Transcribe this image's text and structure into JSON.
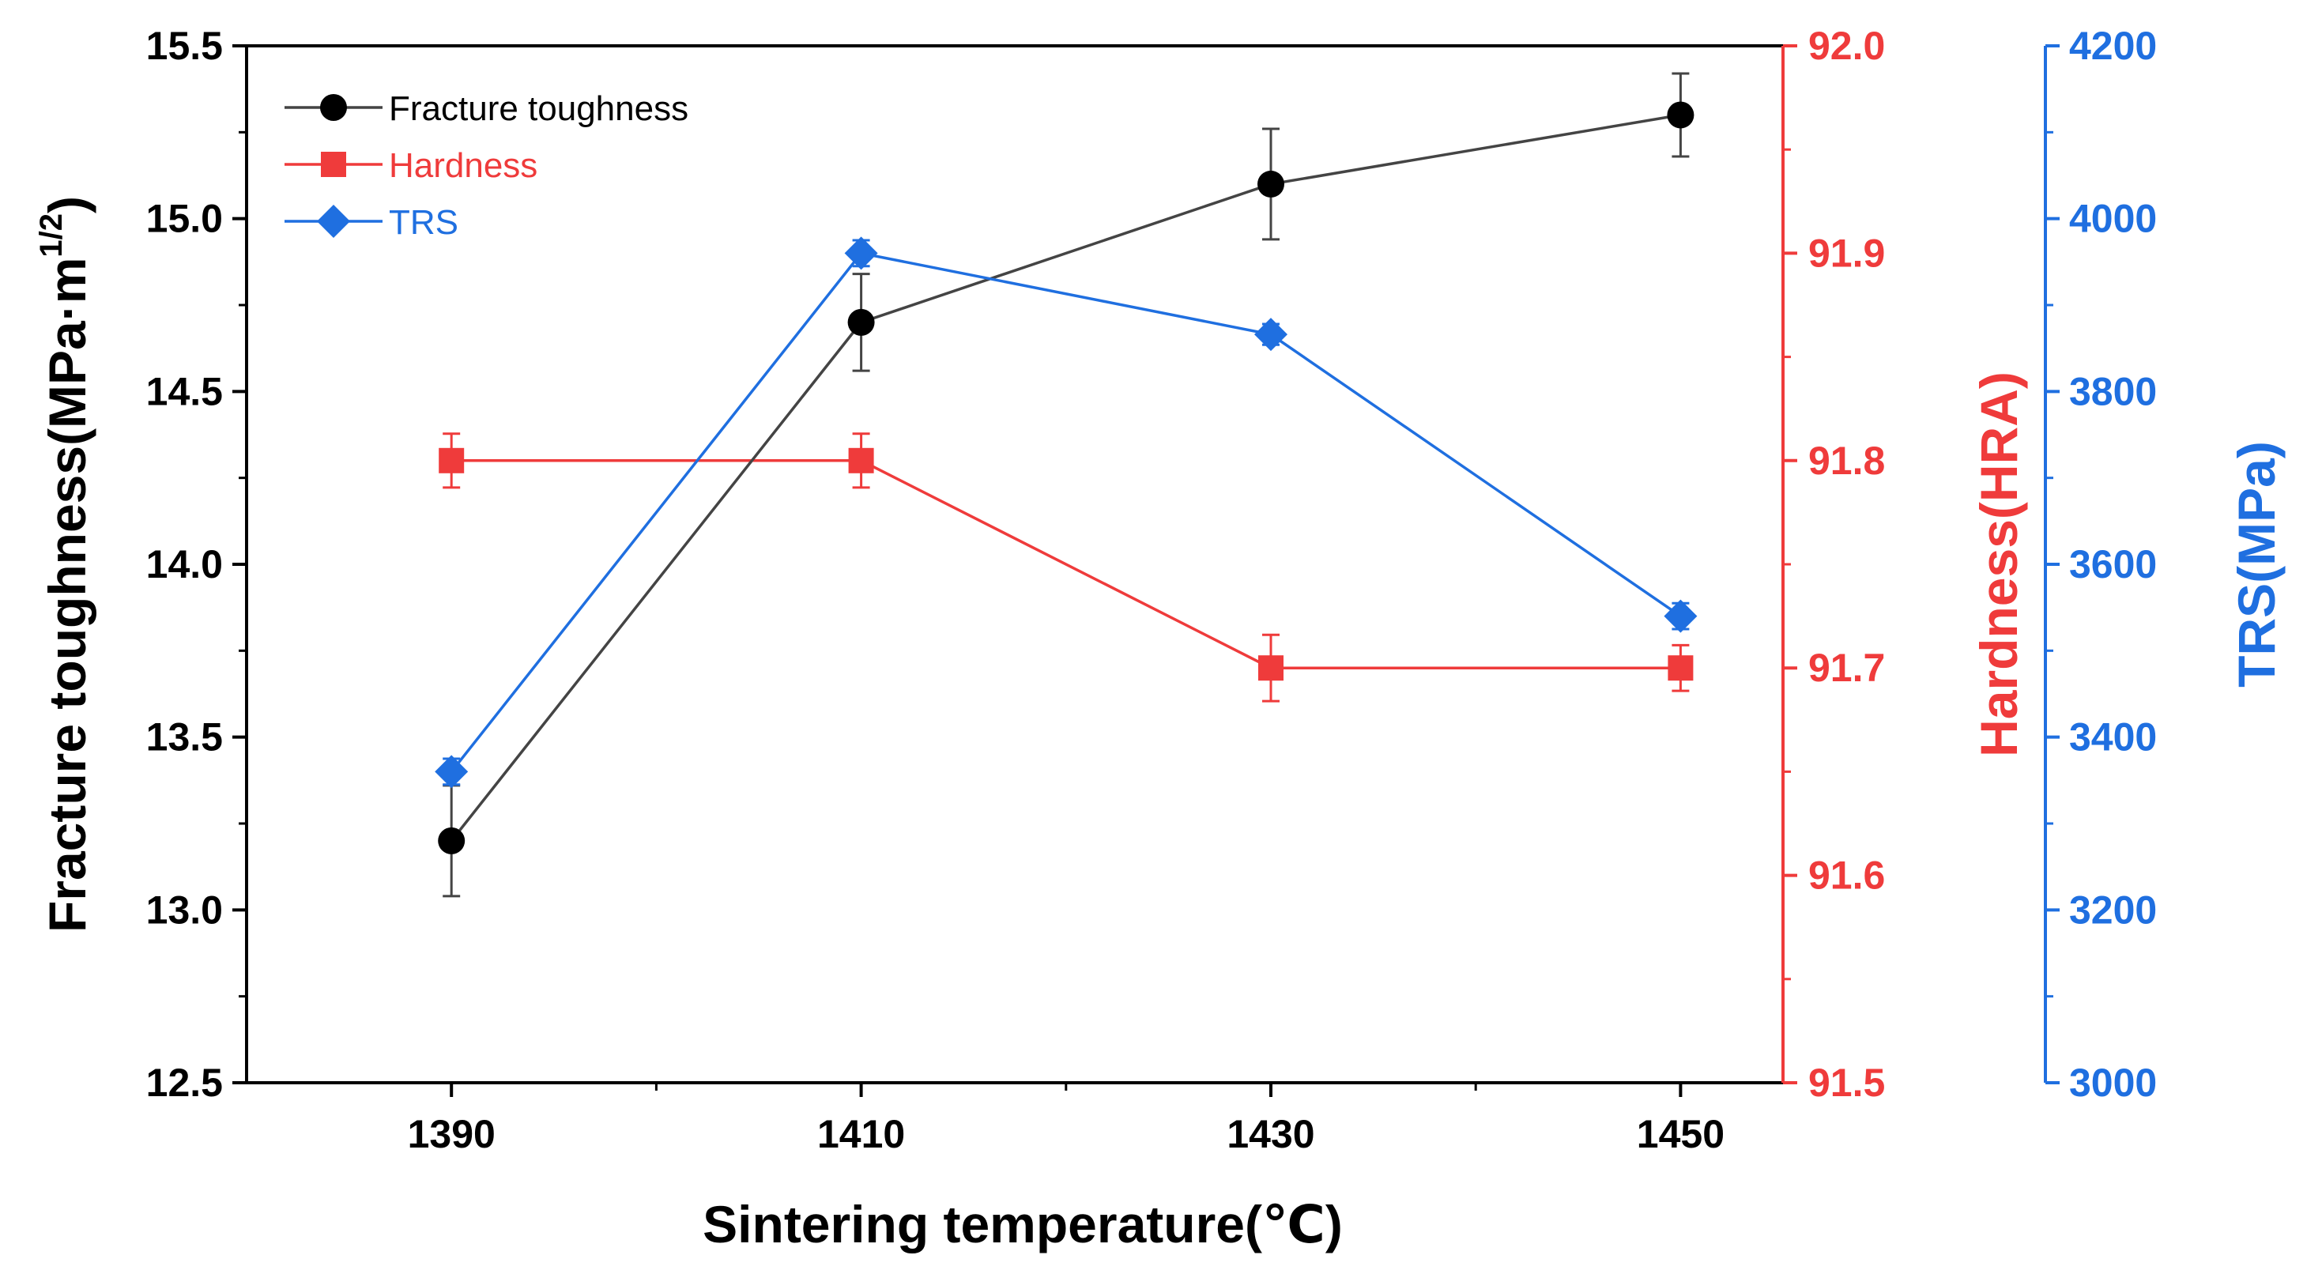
{
  "chart_data": {
    "type": "line",
    "xlabel": "Sintering temperature(℃)",
    "x": [
      1390,
      1410,
      1430,
      1450
    ],
    "xlim": [
      1380,
      1455
    ],
    "x_major_ticks": [
      1390,
      1410,
      1430,
      1450
    ],
    "x_minor_ticks": [
      1400,
      1420,
      1440
    ],
    "grid": false,
    "legend_position": "top-left",
    "axes": {
      "left": {
        "label_main": "Fracture toughness(MPa·m",
        "label_sup": "1/2",
        "label_close": ")",
        "range": [
          12.5,
          15.5
        ],
        "ticks": [
          "12.5",
          "13.0",
          "13.5",
          "14.0",
          "14.5",
          "15.0",
          "15.5"
        ],
        "color": "#000000"
      },
      "right1": {
        "label": "Hardness(HRA)",
        "range": [
          91.5,
          92.0
        ],
        "ticks": [
          "91.5",
          "91.6",
          "91.7",
          "91.8",
          "91.9",
          "92.0"
        ],
        "color": "#ef3b3b"
      },
      "right2": {
        "label": "TRS(MPa)",
        "range": [
          3000,
          4200
        ],
        "ticks": [
          "3000",
          "3200",
          "3400",
          "3600",
          "3800",
          "4000",
          "4200"
        ],
        "color": "#1f6fe0"
      }
    },
    "series": [
      {
        "name": "Fracture toughness",
        "axis": "left",
        "color": "#000000",
        "line_color": "#444444",
        "marker": "circle",
        "values": [
          13.2,
          14.7,
          15.1,
          15.3
        ],
        "errors": [
          0.16,
          0.14,
          0.16,
          0.12
        ]
      },
      {
        "name": "Hardness",
        "axis": "right1",
        "color": "#ef3b3b",
        "line_color": "#ef3b3b",
        "marker": "square",
        "values": [
          91.8,
          91.8,
          91.7,
          91.7
        ],
        "errors": [
          0.013,
          0.013,
          0.016,
          0.011
        ]
      },
      {
        "name": "TRS",
        "axis": "right2",
        "color": "#1f6fe0",
        "line_color": "#1f6fe0",
        "marker": "diamond",
        "values": [
          3360,
          3960,
          3866,
          3540
        ],
        "errors": [
          15,
          15,
          12,
          15
        ]
      }
    ]
  }
}
